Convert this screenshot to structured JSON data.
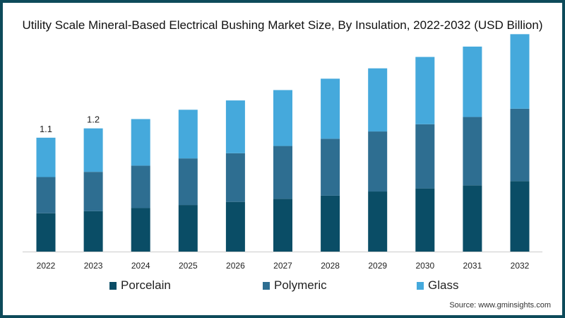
{
  "chart_data": {
    "type": "bar",
    "stacked": true,
    "title": "Utility Scale Mineral-Based Electrical Bushing Market Size, By Insulation, 2022-2032 (USD Billion)",
    "xlabel": "",
    "ylabel": "",
    "ylim": [
      0,
      2.2
    ],
    "grid": false,
    "legend_position": "bottom",
    "categories": [
      "2022",
      "2023",
      "2024",
      "2025",
      "2026",
      "2027",
      "2028",
      "2029",
      "2030",
      "2031",
      "2032"
    ],
    "series": [
      {
        "name": "Porcelain",
        "color": "#0a4d66",
        "values": [
          0.37,
          0.39,
          0.42,
          0.45,
          0.48,
          0.51,
          0.54,
          0.58,
          0.61,
          0.64,
          0.68
        ]
      },
      {
        "name": "Polymeric",
        "color": "#2e6e91",
        "values": [
          0.35,
          0.38,
          0.41,
          0.45,
          0.47,
          0.51,
          0.55,
          0.58,
          0.62,
          0.66,
          0.7
        ]
      },
      {
        "name": "Glass",
        "color": "#45a9dc",
        "values": [
          0.38,
          0.42,
          0.45,
          0.47,
          0.51,
          0.54,
          0.58,
          0.61,
          0.65,
          0.68,
          0.72
        ]
      }
    ],
    "data_labels": [
      {
        "category": "2022",
        "text": "1.1"
      },
      {
        "category": "2023",
        "text": "1.2"
      }
    ]
  },
  "source": "Source: www.gminsights.com"
}
